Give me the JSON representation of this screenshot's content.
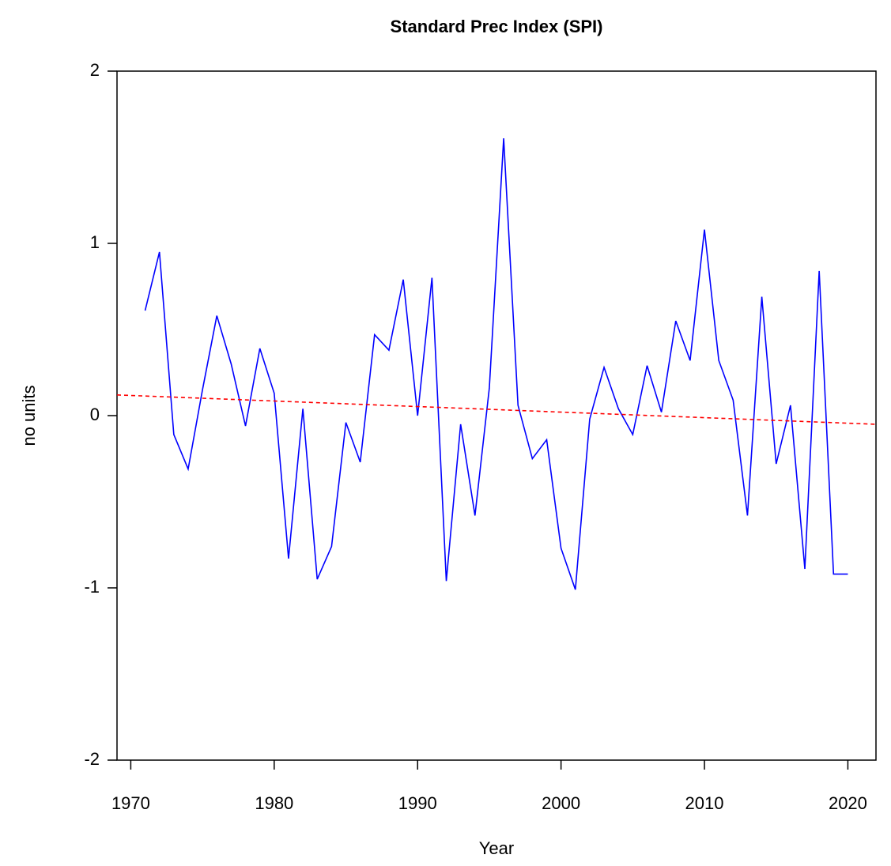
{
  "chart_data": {
    "type": "line",
    "title": "Standard Prec Index (SPI)",
    "x_label": "Year",
    "y_label": "no units",
    "x": [
      1971,
      1972,
      1973,
      1974,
      1975,
      1976,
      1977,
      1978,
      1979,
      1980,
      1981,
      1982,
      1983,
      1984,
      1985,
      1986,
      1987,
      1988,
      1989,
      1990,
      1991,
      1992,
      1993,
      1994,
      1995,
      1996,
      1997,
      1998,
      1999,
      2000,
      2001,
      2002,
      2003,
      2004,
      2005,
      2006,
      2007,
      2008,
      2009,
      2010,
      2011,
      2012,
      2013,
      2014,
      2015,
      2016,
      2017,
      2018,
      2019,
      2020
    ],
    "series": [
      {
        "color": "#0000ff",
        "values": [
          0.61,
          0.95,
          -0.11,
          -0.31,
          0.15,
          0.58,
          0.3,
          -0.06,
          0.39,
          0.13,
          -0.83,
          0.04,
          -0.95,
          -0.76,
          -0.04,
          -0.27,
          0.47,
          0.38,
          0.79,
          0.0,
          0.8,
          -0.96,
          -0.05,
          -0.58,
          0.16,
          1.61,
          0.06,
          -0.25,
          -0.14,
          -0.77,
          -1.01,
          -0.02,
          0.28,
          0.04,
          -0.11,
          0.29,
          0.02,
          0.55,
          0.32,
          1.08,
          0.32,
          0.09,
          -0.58,
          0.69,
          -0.28,
          0.06,
          -0.89,
          0.84,
          -0.92,
          -0.92
        ]
      }
    ],
    "trend": {
      "color": "#ff0000",
      "x": [
        1970,
        2020
      ],
      "values": [
        0.117,
        -0.044
      ]
    },
    "xlim": [
      1969.04,
      2021.96
    ],
    "ylim": [
      -2,
      2
    ],
    "xticks": [
      1970,
      1980,
      1990,
      2000,
      2010,
      2020
    ],
    "yticks": [
      -2,
      -1,
      0,
      1,
      2
    ]
  }
}
